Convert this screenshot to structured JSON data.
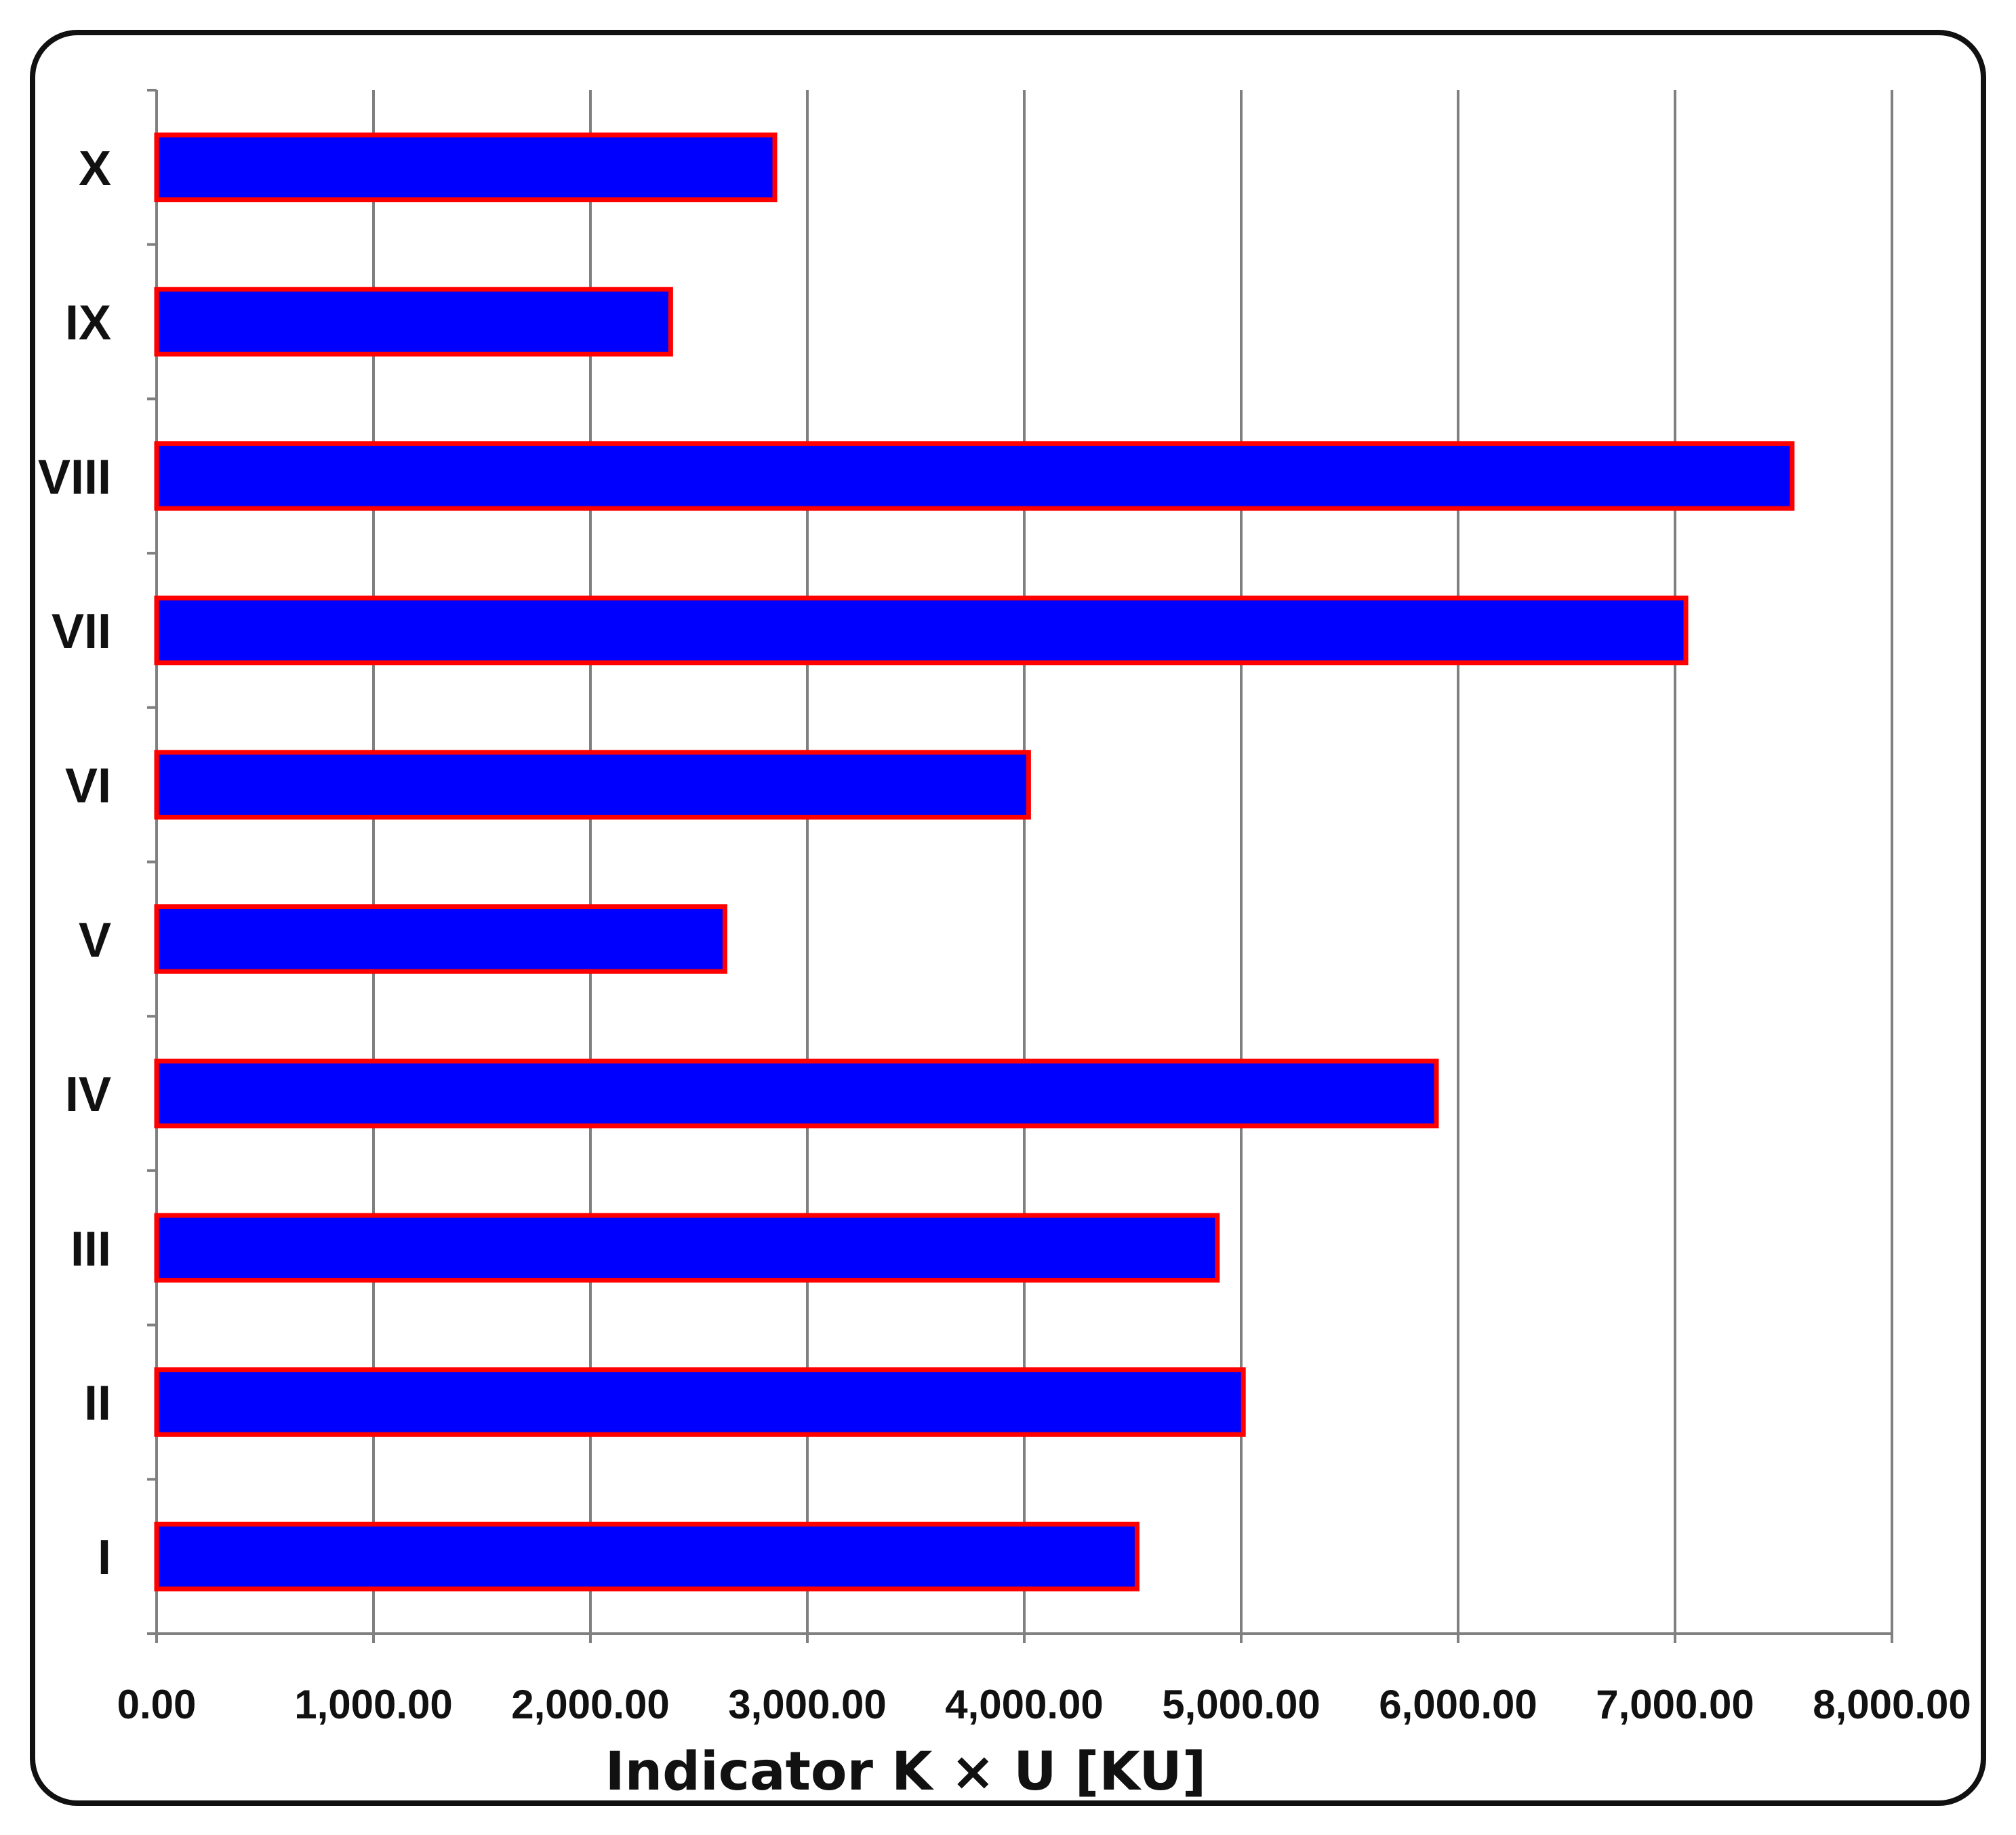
{
  "chart_data": {
    "type": "bar",
    "orientation": "horizontal",
    "categories": [
      "I",
      "II",
      "III",
      "IV",
      "V",
      "VI",
      "VII",
      "VIII",
      "IX",
      "X"
    ],
    "values": [
      4520,
      5010,
      4890,
      5900,
      2620,
      4020,
      7050,
      7540,
      2370,
      2850
    ],
    "xlabel": "Indicator K × U [KU]",
    "ylabel": "",
    "xlim": [
      0,
      8000
    ],
    "xticks": [
      "0.00",
      "1,000.00",
      "2,000.00",
      "3,000.00",
      "4,000.00",
      "5,000.00",
      "6,000.00",
      "7,000.00",
      "8,000.00"
    ],
    "grid": "vertical",
    "colors": {
      "bar_fill": "#0000FF",
      "bar_stroke": "#FF0000",
      "grid": "#808080"
    }
  }
}
